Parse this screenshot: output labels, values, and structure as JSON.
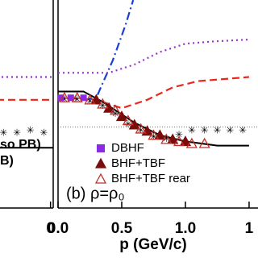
{
  "chart_data": [
    {
      "type": "line",
      "xlim": [
        1.1,
        1.52
      ],
      "ylim": [
        0,
        1
      ],
      "xticks": [
        {
          "value": 1.5,
          "label": "0"
        }
      ],
      "texts": [
        "so PB)",
        "B)"
      ],
      "series": [
        {
          "style": "dotted",
          "color": "#9933cc",
          "x": [
            1.1,
            1.52
          ],
          "values": [
            0.63,
            0.63
          ]
        },
        {
          "style": "dashed",
          "color": "#e8261c",
          "x": [
            1.1,
            1.52
          ],
          "values": [
            0.52,
            0.52
          ]
        },
        {
          "style": "stars",
          "color": "#2a9a2a",
          "x": [
            1.15,
            1.25,
            1.35,
            1.45
          ],
          "values": [
            0.36,
            0.36,
            0.37,
            0.36
          ]
        },
        {
          "style": "solid",
          "color": "#000000",
          "x": [
            1.1,
            1.52
          ],
          "values": [
            0.29,
            0.29
          ]
        }
      ]
    },
    {
      "type": "line",
      "xlim": [
        0,
        1.57
      ],
      "ylim": [
        0,
        1
      ],
      "xticks": [
        {
          "value": 0,
          "label": "0.0"
        },
        0.5,
        {
          "value": 1,
          "label": "1.0"
        },
        {
          "value": 1.5,
          "label": "1"
        }
      ],
      "xlabel": "p (GeV/c)",
      "annotation": "(b) ρ=ρ₀",
      "ref_line": 0.39,
      "series": [
        {
          "style": "dashdot",
          "color": "#1a3fd6",
          "x": [
            0.2,
            0.3,
            0.43,
            0.53,
            0.59
          ],
          "values": [
            0.52,
            0.53,
            0.71,
            0.88,
            1.0
          ]
        },
        {
          "style": "dotted",
          "color": "#9933cc",
          "x": [
            0,
            0.4,
            0.6,
            0.8,
            1.0,
            1.2,
            1.5
          ],
          "values": [
            0.65,
            0.65,
            0.69,
            0.75,
            0.79,
            0.8,
            0.81
          ]
        },
        {
          "style": "dashed",
          "color": "#e8261c",
          "x": [
            0,
            0.3,
            0.5,
            0.7,
            0.9,
            1.1,
            1.5
          ],
          "values": [
            0.53,
            0.52,
            0.48,
            0.52,
            0.58,
            0.61,
            0.63
          ]
        },
        {
          "style": "solid",
          "color": "#000000",
          "x": [
            0,
            0.2,
            0.35,
            0.6,
            0.8,
            1.0,
            1.25,
            1.5
          ],
          "values": [
            0.56,
            0.56,
            0.51,
            0.41,
            0.35,
            0.32,
            0.3,
            0.3
          ]
        },
        {
          "style": "stars",
          "color": "#2a9a2a",
          "x": [
            0.05,
            0.15,
            0.25,
            0.35,
            0.45,
            0.55,
            0.65,
            0.75,
            0.85,
            0.95,
            1.05,
            1.15,
            1.25,
            1.35,
            1.45
          ],
          "values": [
            0.52,
            0.52,
            0.51,
            0.49,
            0.45,
            0.4,
            0.37,
            0.34,
            0.33,
            0.35,
            0.37,
            0.37,
            0.37,
            0.37,
            0.37
          ]
        },
        {
          "name": "DBHF",
          "style": "square",
          "color": "#8a2be2",
          "x": [
            0.02,
            0.1,
            0.2
          ],
          "values": [
            0.53,
            0.53,
            0.53
          ]
        },
        {
          "name": "BHF+TBF",
          "style": "triangle",
          "color": "#7a0c0c",
          "x": [
            0.3,
            0.4,
            0.5,
            0.6,
            0.7,
            0.8,
            0.9,
            1.0
          ],
          "values": [
            0.52,
            0.48,
            0.44,
            0.4,
            0.37,
            0.35,
            0.33,
            0.32
          ]
        },
        {
          "name": "BHF+TBF rear",
          "style": "triangle-open",
          "color": "#c0302a",
          "x": [
            0.05,
            0.15,
            0.25,
            0.35,
            0.45,
            0.55,
            0.65,
            0.75,
            0.85,
            0.95,
            1.05,
            1.15
          ],
          "values": [
            0.53,
            0.53,
            0.52,
            0.5,
            0.47,
            0.42,
            0.38,
            0.35,
            0.33,
            0.32,
            0.31,
            0.31
          ]
        }
      ]
    }
  ]
}
